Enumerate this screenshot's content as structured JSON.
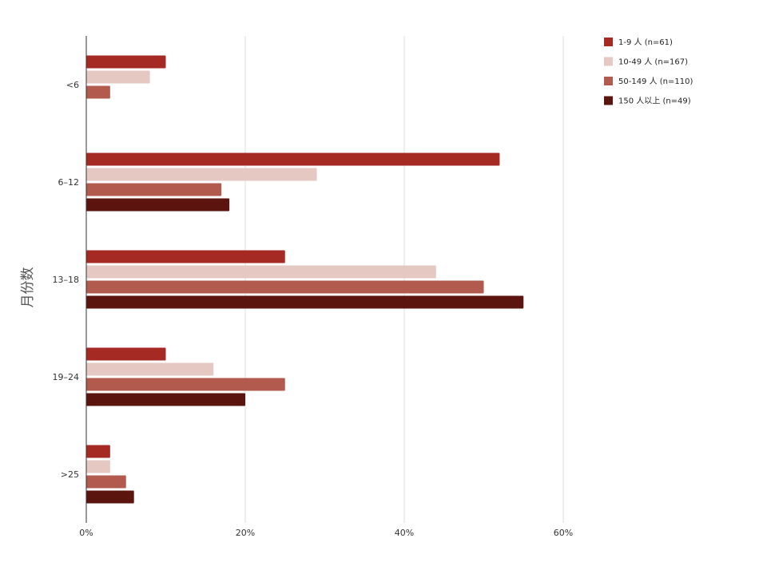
{
  "chart_data": {
    "type": "bar",
    "orientation": "horizontal",
    "ylabel": "月份数",
    "xlabel": "",
    "categories": [
      "<6",
      "6–12",
      "13–18",
      "19–24",
      ">25"
    ],
    "xlim": [
      0,
      60
    ],
    "x_ticks": [
      "0%",
      "20%",
      "40%",
      "60%"
    ],
    "grid": true,
    "legend_position": "top-right",
    "series": [
      {
        "name": "1-9 人 (n=61)",
        "color": "#a52a24",
        "values": [
          10,
          52,
          25,
          10,
          3
        ]
      },
      {
        "name": "10-49 人 (n=167)",
        "color": "#e5c8c2",
        "values": [
          8,
          29,
          44,
          16,
          3
        ]
      },
      {
        "name": "50-149 人 (n=110)",
        "color": "#b35a4e",
        "values": [
          3,
          17,
          50,
          25,
          5
        ]
      },
      {
        "name": "150 人以上 (n=49)",
        "color": "#5c140e",
        "values": [
          null,
          18,
          55,
          20,
          6
        ]
      }
    ]
  }
}
